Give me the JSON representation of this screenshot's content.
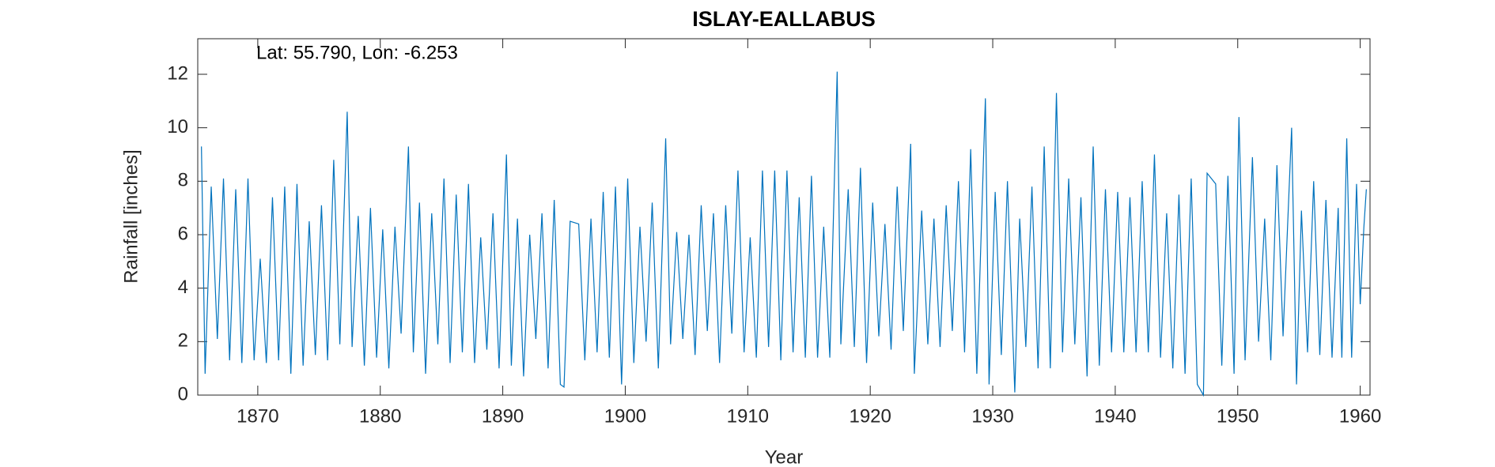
{
  "chart_data": {
    "type": "line",
    "title": "ISLAY-EALLABUS",
    "annotation": "Lat: 55.790, Lon: -6.253",
    "xlabel": "Year",
    "ylabel": "Rainfall [inches]",
    "xlim": [
      1865.1,
      1960.8
    ],
    "xticks": [
      1870,
      1880,
      1890,
      1900,
      1910,
      1920,
      1930,
      1940,
      1950,
      1960
    ],
    "ylim": [
      0,
      13.33
    ],
    "yticks": [
      0,
      2,
      4,
      6,
      8,
      10,
      12
    ],
    "series": [
      {
        "color": "#0072bd",
        "x": [
          1865.4,
          1865.7,
          1866.2,
          1866.7,
          1867.2,
          1867.7,
          1868.2,
          1868.7,
          1869.2,
          1869.7,
          1870.2,
          1870.7,
          1871.2,
          1871.7,
          1872.2,
          1872.7,
          1873.2,
          1873.7,
          1874.2,
          1874.7,
          1875.2,
          1875.7,
          1876.2,
          1876.7,
          1877.3,
          1877.7,
          1878.2,
          1878.7,
          1879.2,
          1879.7,
          1880.2,
          1880.7,
          1881.2,
          1881.7,
          1882.3,
          1882.7,
          1883.2,
          1883.7,
          1884.2,
          1884.7,
          1885.2,
          1885.7,
          1886.2,
          1886.7,
          1887.2,
          1887.7,
          1888.2,
          1888.7,
          1889.2,
          1889.7,
          1890.3,
          1890.7,
          1891.2,
          1891.7,
          1892.2,
          1892.7,
          1893.2,
          1893.7,
          1894.2,
          1894.7,
          1895.0,
          1895.5,
          1896.2,
          1896.7,
          1897.2,
          1897.7,
          1898.2,
          1898.7,
          1899.2,
          1899.7,
          1900.2,
          1900.7,
          1901.2,
          1901.7,
          1902.2,
          1902.7,
          1903.3,
          1903.7,
          1904.2,
          1904.7,
          1905.2,
          1905.7,
          1906.2,
          1906.7,
          1907.2,
          1907.7,
          1908.2,
          1908.7,
          1909.2,
          1909.7,
          1910.2,
          1910.7,
          1911.2,
          1911.7,
          1912.2,
          1912.7,
          1913.2,
          1913.7,
          1914.2,
          1914.7,
          1915.2,
          1915.7,
          1916.2,
          1916.7,
          1917.3,
          1917.6,
          1918.2,
          1918.7,
          1919.2,
          1919.7,
          1920.2,
          1920.7,
          1921.2,
          1921.7,
          1922.2,
          1922.7,
          1923.3,
          1923.6,
          1924.2,
          1924.7,
          1925.2,
          1925.7,
          1926.2,
          1926.7,
          1927.2,
          1927.7,
          1928.2,
          1928.7,
          1929.4,
          1929.7,
          1930.2,
          1930.7,
          1931.2,
          1931.8,
          1932.2,
          1932.7,
          1933.2,
          1933.7,
          1934.2,
          1934.7,
          1935.2,
          1935.7,
          1936.2,
          1936.7,
          1937.2,
          1937.7,
          1938.2,
          1938.7,
          1939.2,
          1939.7,
          1940.2,
          1940.7,
          1941.2,
          1941.7,
          1942.2,
          1942.7,
          1943.2,
          1943.7,
          1944.2,
          1944.7,
          1945.2,
          1945.7,
          1946.2,
          1946.7,
          1947.2,
          1947.5,
          1948.2,
          1948.7,
          1949.2,
          1949.7,
          1950.1,
          1950.6,
          1951.2,
          1951.7,
          1952.2,
          1952.7,
          1953.2,
          1953.7,
          1954.4,
          1954.8,
          1955.2,
          1955.7,
          1956.2,
          1956.7,
          1957.2,
          1957.7,
          1958.2,
          1958.5,
          1958.9,
          1959.3,
          1959.7,
          1960.0,
          1960.3,
          1960.5
        ],
        "values": [
          9.3,
          0.8,
          7.8,
          2.1,
          8.1,
          1.3,
          7.7,
          1.2,
          8.1,
          1.3,
          5.1,
          1.2,
          7.4,
          1.3,
          7.8,
          0.8,
          7.9,
          1.1,
          6.5,
          1.5,
          7.1,
          1.3,
          8.8,
          1.9,
          10.6,
          1.8,
          6.7,
          1.1,
          7.0,
          1.4,
          6.2,
          1.0,
          6.3,
          2.3,
          9.3,
          1.6,
          7.2,
          0.8,
          6.8,
          1.9,
          8.1,
          1.2,
          7.5,
          1.6,
          7.9,
          1.2,
          5.9,
          1.7,
          6.8,
          1.0,
          9.0,
          1.1,
          6.6,
          0.7,
          6.0,
          2.1,
          6.8,
          1.0,
          7.3,
          0.4,
          0.3,
          6.5,
          6.4,
          1.3,
          6.6,
          1.6,
          7.6,
          1.4,
          7.8,
          0.4,
          8.1,
          1.2,
          6.3,
          2.0,
          7.2,
          1.0,
          9.6,
          1.9,
          6.1,
          2.1,
          6.0,
          1.5,
          7.1,
          2.4,
          6.8,
          1.2,
          7.1,
          2.3,
          8.4,
          1.6,
          5.9,
          1.4,
          8.4,
          1.8,
          8.4,
          1.3,
          8.4,
          1.6,
          7.4,
          1.4,
          8.2,
          1.4,
          6.3,
          1.4,
          12.1,
          1.9,
          7.7,
          1.8,
          8.5,
          1.2,
          7.2,
          2.2,
          6.4,
          1.7,
          7.8,
          2.4,
          9.4,
          0.8,
          6.9,
          1.9,
          6.6,
          1.8,
          7.1,
          2.4,
          8.0,
          1.6,
          9.2,
          0.8,
          11.1,
          0.4,
          7.6,
          1.5,
          8.0,
          0.1,
          6.6,
          1.8,
          7.8,
          1.0,
          9.3,
          1.0,
          11.3,
          1.6,
          8.1,
          1.9,
          7.4,
          0.7,
          9.3,
          1.1,
          7.7,
          1.6,
          7.6,
          1.6,
          7.4,
          1.6,
          8.0,
          1.6,
          9.0,
          1.4,
          6.8,
          1.0,
          7.5,
          0.8,
          8.1,
          0.4,
          0.0,
          8.3,
          7.9,
          1.1,
          8.2,
          0.8,
          10.4,
          1.3,
          8.9,
          2.0,
          6.6,
          1.3,
          8.6,
          2.2,
          10.0,
          0.4,
          6.9,
          1.6,
          8.0,
          1.5,
          7.3,
          1.4,
          7.0,
          1.4,
          9.6,
          1.4,
          7.9,
          3.4,
          6.3,
          7.7
        ]
      }
    ]
  }
}
